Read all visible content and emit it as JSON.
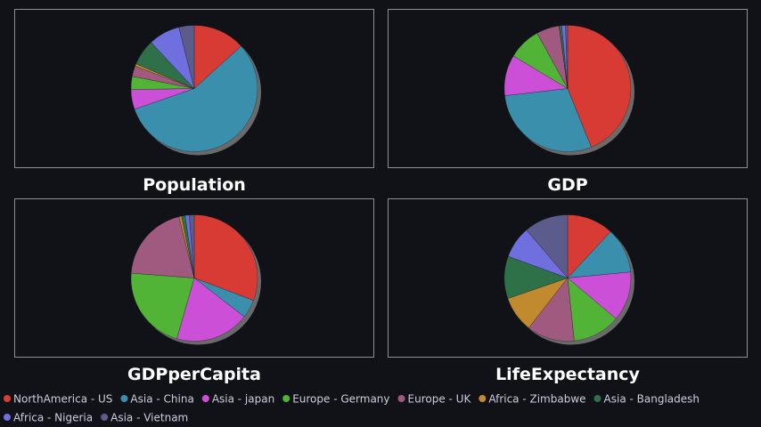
{
  "legend": {
    "categories": [
      "NorthAmerica - US",
      "Asia - China",
      "Asia - japan",
      "Europe - Germany",
      "Europe - UK",
      "Africa - Zimbabwe",
      "Asia - Bangladesh",
      "Africa - Nigeria",
      "Asia - Vietnam"
    ],
    "colors": [
      "#d83b34",
      "#3a8fac",
      "#cc4fd8",
      "#52b436",
      "#a05a80",
      "#c28a2e",
      "#2e7048",
      "#6f6fe0",
      "#5c5c8c"
    ]
  },
  "chart_data": [
    {
      "type": "pie",
      "title": "Population",
      "values": [
        330,
        1400,
        126,
        83,
        67,
        15,
        165,
        200,
        97
      ]
    },
    {
      "type": "pie",
      "title": "GDP",
      "values": [
        21,
        14,
        5,
        4,
        2.8,
        0.02,
        0.3,
        0.45,
        0.26
      ]
    },
    {
      "type": "pie",
      "title": "GDPperCapita",
      "values": [
        65000,
        10000,
        40000,
        46000,
        42000,
        1400,
        1900,
        2200,
        2700
      ]
    },
    {
      "type": "pie",
      "title": "LifeExpectancy",
      "values": [
        79,
        77,
        84,
        81,
        81,
        61,
        72,
        54,
        75
      ]
    }
  ]
}
